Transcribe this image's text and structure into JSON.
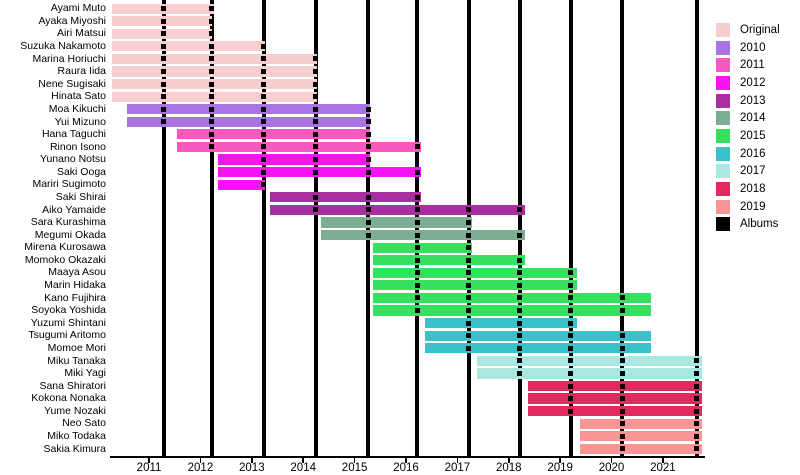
{
  "chart_data": {
    "type": "bar",
    "variant": "gantt-membership-timeline",
    "title": "",
    "x_axis": {
      "range": [
        2010.24,
        2021.78
      ],
      "tick_years": [
        2011,
        2012,
        2013,
        2014,
        2015,
        2016,
        2017,
        2018,
        2019,
        2020,
        2021
      ],
      "grid": false
    },
    "legend": {
      "position": "right",
      "entries": [
        {
          "label": "Original",
          "color": "#F7CDCF"
        },
        {
          "label": "2010",
          "color": "#A873E2"
        },
        {
          "label": "2011",
          "color": "#F958BE"
        },
        {
          "label": "2012",
          "color": "#F716F3"
        },
        {
          "label": "2013",
          "color": "#A8309E"
        },
        {
          "label": "2014",
          "color": "#7CAE94"
        },
        {
          "label": "2015",
          "color": "#35DF60"
        },
        {
          "label": "2016",
          "color": "#38C1C8"
        },
        {
          "label": "2017",
          "color": "#A9E7E0"
        },
        {
          "label": "2018",
          "color": "#E02A5E"
        },
        {
          "label": "2019",
          "color": "#F99695"
        },
        {
          "label": "Albums",
          "color": "#000000"
        }
      ]
    },
    "album_dates": [
      2011.29,
      2012.22,
      2013.23,
      2014.24,
      2015.27,
      2016.22,
      2017.22,
      2018.21,
      2019.21,
      2020.21,
      2021.66
    ],
    "members": [
      {
        "name": "Ayami Muto",
        "cohort": "Original",
        "start": 2010.28,
        "end": 2012.26
      },
      {
        "name": "Ayaka Miyoshi",
        "cohort": "Original",
        "start": 2010.28,
        "end": 2012.23
      },
      {
        "name": "Airi Matsui",
        "cohort": "Original",
        "start": 2010.28,
        "end": 2012.23
      },
      {
        "name": "Suzuka Nakamoto",
        "cohort": "Original",
        "start": 2010.28,
        "end": 2013.26
      },
      {
        "name": "Marina Horiuchi",
        "cohort": "Original",
        "start": 2010.28,
        "end": 2014.27
      },
      {
        "name": "Raura Iida",
        "cohort": "Original",
        "start": 2010.28,
        "end": 2014.27
      },
      {
        "name": "Nene Sugisaki",
        "cohort": "Original",
        "start": 2010.28,
        "end": 2014.27
      },
      {
        "name": "Hinata Sato",
        "cohort": "Original",
        "start": 2010.28,
        "end": 2014.27
      },
      {
        "name": "Moa Kikuchi",
        "cohort": "2010",
        "start": 2010.57,
        "end": 2015.3
      },
      {
        "name": "Yui Mizuno",
        "cohort": "2010",
        "start": 2010.57,
        "end": 2015.3
      },
      {
        "name": "Hana Taguchi",
        "cohort": "2011",
        "start": 2011.54,
        "end": 2015.3
      },
      {
        "name": "Rinon Isono",
        "cohort": "2011",
        "start": 2011.54,
        "end": 2016.3
      },
      {
        "name": "Yunano Notsu",
        "cohort": "2012",
        "start": 2012.34,
        "end": 2015.3
      },
      {
        "name": "Saki Ooga",
        "cohort": "2012",
        "start": 2012.34,
        "end": 2016.3
      },
      {
        "name": "Mariri Sugimoto",
        "cohort": "2012",
        "start": 2012.34,
        "end": 2013.26
      },
      {
        "name": "Saki Shirai",
        "cohort": "2013",
        "start": 2013.35,
        "end": 2016.3
      },
      {
        "name": "Aiko Yamaide",
        "cohort": "2013",
        "start": 2013.35,
        "end": 2018.31
      },
      {
        "name": "Sara Kurashima",
        "cohort": "2014",
        "start": 2014.35,
        "end": 2017.29
      },
      {
        "name": "Megumi Okada",
        "cohort": "2014",
        "start": 2014.35,
        "end": 2018.31
      },
      {
        "name": "Mirena Kurosawa",
        "cohort": "2015",
        "start": 2015.36,
        "end": 2017.29
      },
      {
        "name": "Momoko Okazaki",
        "cohort": "2015",
        "start": 2015.36,
        "end": 2018.31
      },
      {
        "name": "Maaya Asou",
        "cohort": "2015",
        "start": 2015.36,
        "end": 2019.32
      },
      {
        "name": "Marin Hidaka",
        "cohort": "2015",
        "start": 2015.36,
        "end": 2019.32
      },
      {
        "name": "Kano Fujihira",
        "cohort": "2015",
        "start": 2015.36,
        "end": 2020.76
      },
      {
        "name": "Soyoka Yoshida",
        "cohort": "2015",
        "start": 2015.36,
        "end": 2020.76
      },
      {
        "name": "Yuzumi Shintani",
        "cohort": "2016",
        "start": 2016.37,
        "end": 2019.32
      },
      {
        "name": "Tsugumi Aritomo",
        "cohort": "2016",
        "start": 2016.37,
        "end": 2020.76
      },
      {
        "name": "Momoe Mori",
        "cohort": "2016",
        "start": 2016.37,
        "end": 2020.76
      },
      {
        "name": "Miku Tanaka",
        "cohort": "2017",
        "start": 2017.38,
        "end": 2021.76
      },
      {
        "name": "Miki Yagi",
        "cohort": "2017",
        "start": 2017.38,
        "end": 2021.76
      },
      {
        "name": "Sana Shiratori",
        "cohort": "2018",
        "start": 2018.37,
        "end": 2021.76
      },
      {
        "name": "Kokona Nonaka",
        "cohort": "2018",
        "start": 2018.37,
        "end": 2021.76
      },
      {
        "name": "Yume Nozaki",
        "cohort": "2018",
        "start": 2018.37,
        "end": 2021.76
      },
      {
        "name": "Neo Sato",
        "cohort": "2019",
        "start": 2019.39,
        "end": 2021.76
      },
      {
        "name": "Miko Todaka",
        "cohort": "2019",
        "start": 2019.39,
        "end": 2021.76
      },
      {
        "name": "Sakia Kimura",
        "cohort": "2019",
        "start": 2019.39,
        "end": 2021.76
      }
    ]
  }
}
